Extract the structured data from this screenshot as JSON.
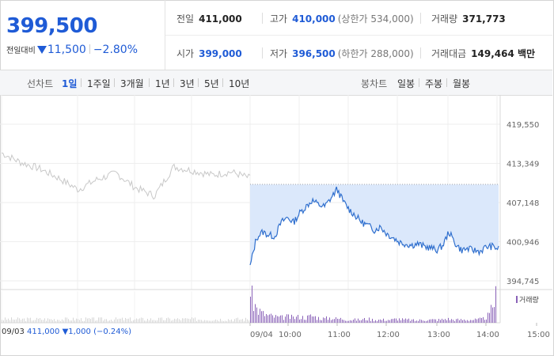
{
  "header": {
    "price": "399,500",
    "change_label": "전일대비",
    "change_value": "11,500",
    "change_pct": "−2.80%"
  },
  "stats": {
    "prev_close_label": "전일",
    "prev_close": "411,000",
    "high_label": "고가",
    "high": "410,000",
    "upper_limit": "(상한가 534,000)",
    "volume_label": "거래량",
    "volume": "371,773",
    "open_label": "시가",
    "open": "399,000",
    "low_label": "저가",
    "low": "396,500",
    "lower_limit": "(하한가 288,000)",
    "amount_label": "거래대금",
    "amount": "149,464 백만"
  },
  "tabs": {
    "line_label": "선차트",
    "line_options": [
      "1일",
      "1주일",
      "3개월",
      "1년",
      "3년",
      "5년",
      "10년"
    ],
    "active": "1일",
    "candle_label": "봉차트",
    "candle_options": [
      "일봉",
      "주봉",
      "월봉"
    ]
  },
  "bottom_info": {
    "date": "09/03",
    "close": "411,000",
    "change": "▼1,000",
    "pct": "(−0.24%)"
  },
  "volume_legend": "거래량",
  "colors": {
    "accent": "#1f5bd6",
    "today_line": "#2f6fce",
    "today_fill": "#dbe8fb",
    "prev_line": "#c8c8c8",
    "volume_bar": "#8a62b8"
  },
  "chart_data": {
    "type": "line",
    "y_ticks": [
      "419,550",
      "413,349",
      "407,148",
      "400,946",
      "394,745"
    ],
    "y_tick_values": [
      419550,
      413349,
      407148,
      400946,
      394745
    ],
    "x_ticks": [
      "09/04",
      "10:00",
      "11:00",
      "12:00",
      "13:00",
      "14:00",
      "15:00"
    ],
    "ylim": [
      394745,
      419550
    ],
    "reference_line": 410000,
    "series": [
      {
        "x": [
          "09/03 09:00",
          "09:30",
          "10:00",
          "10:30",
          "11:00",
          "11:30",
          "12:00",
          "12:30",
          "13:00",
          "13:30",
          "14:00",
          "14:30",
          "15:00",
          "15:30"
        ],
        "values": [
          415000,
          413500,
          412500,
          411000,
          409200,
          410800,
          411800,
          409500,
          408200,
          412800,
          412200,
          411500,
          412000,
          411000
        ]
      },
      {
        "x": [
          "09:00",
          "09:05",
          "09:10",
          "09:20",
          "09:30",
          "09:40",
          "09:50",
          "10:00",
          "10:10",
          "10:20",
          "10:30",
          "10:40",
          "10:50",
          "11:00",
          "11:05",
          "11:10",
          "11:20",
          "11:30",
          "11:40",
          "11:50",
          "12:00",
          "12:10",
          "12:20",
          "12:30",
          "12:40",
          "12:50",
          "13:00",
          "13:10",
          "13:20",
          "13:30",
          "13:40",
          "13:50",
          "14:00",
          "14:10",
          "14:20",
          "14:30",
          "14:40",
          "14:50",
          "15:00",
          "15:10",
          "15:20"
        ],
        "values": [
          397000,
          401500,
          402500,
          402000,
          401800,
          404000,
          404800,
          404000,
          405500,
          406500,
          407500,
          406800,
          406500,
          407800,
          409300,
          407300,
          406000,
          405000,
          404000,
          403500,
          402800,
          403300,
          402200,
          401600,
          400900,
          400600,
          400400,
          400600,
          400200,
          400000,
          399600,
          400300,
          402500,
          400700,
          399600,
          399800,
          399600,
          399400,
          400100,
          400200,
          399800
        ]
      }
    ],
    "volume": [
      28000,
      14000,
      9000,
      7000,
      6000,
      5000,
      6000,
      5000,
      6000,
      5000,
      7000,
      5000,
      4000,
      5000,
      4000,
      4000,
      3000,
      3000,
      3000,
      4000,
      3000,
      3000,
      3000,
      3000,
      4000,
      3000,
      3000,
      2000,
      3000,
      3000,
      3000,
      3000,
      4000,
      3000,
      3000,
      3000,
      3000,
      3000,
      4000,
      8000,
      26000
    ]
  }
}
